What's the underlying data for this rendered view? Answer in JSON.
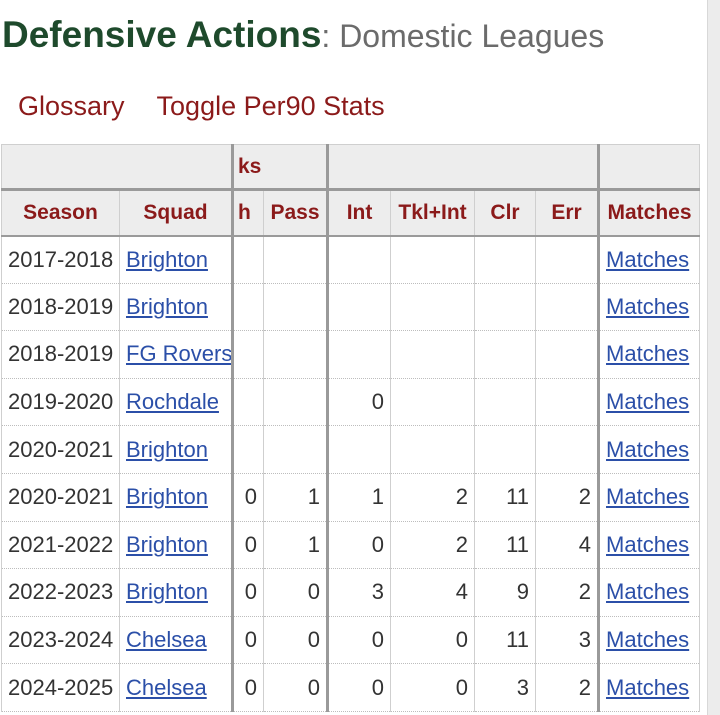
{
  "header": {
    "title": "Defensive Actions",
    "subtitle": ": Domestic Leagues"
  },
  "links": {
    "glossary": "Glossary",
    "toggle": "Toggle Per90 Stats"
  },
  "table": {
    "over_headers": [
      "",
      "ks",
      "",
      ""
    ],
    "columns": [
      "Season",
      "Squad",
      "h",
      "Pass",
      "Int",
      "Tkl+Int",
      "Clr",
      "Err",
      "Matches"
    ],
    "rows": [
      {
        "season": "2017-2018",
        "squad": "Brighton",
        "h": "",
        "pass": "",
        "int": "",
        "tklint": "",
        "clr": "",
        "err": "",
        "matches": "Matches"
      },
      {
        "season": "2018-2019",
        "squad": "Brighton",
        "h": "",
        "pass": "",
        "int": "",
        "tklint": "",
        "clr": "",
        "err": "",
        "matches": "Matches"
      },
      {
        "season": "2018-2019",
        "squad": "FG Rovers",
        "h": "",
        "pass": "",
        "int": "",
        "tklint": "",
        "clr": "",
        "err": "",
        "matches": "Matches"
      },
      {
        "season": "2019-2020",
        "squad": "Rochdale",
        "h": "",
        "pass": "",
        "int": "0",
        "tklint": "",
        "clr": "",
        "err": "",
        "matches": "Matches"
      },
      {
        "season": "2020-2021",
        "squad": "Brighton",
        "h": "",
        "pass": "",
        "int": "",
        "tklint": "",
        "clr": "",
        "err": "",
        "matches": "Matches"
      },
      {
        "season": "2020-2021",
        "squad": "Brighton",
        "h": "0",
        "pass": "1",
        "int": "1",
        "tklint": "2",
        "clr": "11",
        "err": "2",
        "matches": "Matches"
      },
      {
        "season": "2021-2022",
        "squad": "Brighton",
        "h": "0",
        "pass": "1",
        "int": "0",
        "tklint": "2",
        "clr": "11",
        "err": "4",
        "matches": "Matches"
      },
      {
        "season": "2022-2023",
        "squad": "Brighton",
        "h": "0",
        "pass": "0",
        "int": "3",
        "tklint": "4",
        "clr": "9",
        "err": "2",
        "matches": "Matches"
      },
      {
        "season": "2023-2024",
        "squad": "Chelsea",
        "h": "0",
        "pass": "0",
        "int": "0",
        "tklint": "0",
        "clr": "11",
        "err": "3",
        "matches": "Matches"
      },
      {
        "season": "2024-2025",
        "squad": "Chelsea",
        "h": "0",
        "pass": "0",
        "int": "0",
        "tklint": "0",
        "clr": "3",
        "err": "2",
        "matches": "Matches"
      }
    ]
  }
}
